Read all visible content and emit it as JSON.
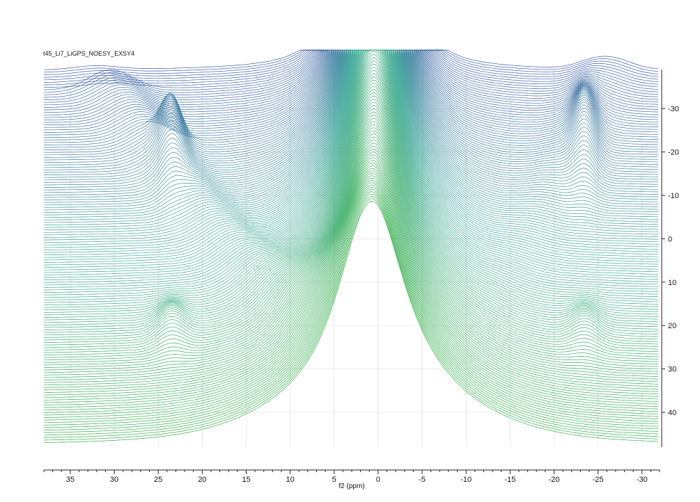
{
  "chart_data": {
    "type": "line",
    "title": "t45_Li7_LiGPS_NOESY_EXSY4",
    "xlabel": "f2 (ppm)",
    "ylabel": "",
    "x_reversed": true,
    "xlim": [
      38.0,
      -32.0
    ],
    "ylim": [
      -39.0,
      48.0
    ],
    "x_ticks": [
      "35",
      "30",
      "25",
      "20",
      "15",
      "10",
      "5",
      "0",
      "-5",
      "-10",
      "-15",
      "-20",
      "-25",
      "-30"
    ],
    "x_tick_values": [
      35,
      30,
      25,
      20,
      15,
      10,
      5,
      0,
      -5,
      -10,
      -15,
      -20,
      -25,
      -30
    ],
    "y_ticks": [
      "-30",
      "-20",
      "-10",
      "0",
      "10",
      "20",
      "30",
      "40"
    ],
    "y_tick_values": [
      -30,
      -20,
      -10,
      0,
      10,
      20,
      30,
      40
    ],
    "grid": true,
    "colormap": {
      "low": "#1a3f96",
      "mid": "#1e9a8a",
      "high": "#12a02a"
    },
    "trace_count": 150,
    "features": {
      "central_peak_ppm": 0.5,
      "diagonal_crosspeak_ppm": [
        23.5,
        -23.5
      ],
      "crosspeak_f1_ppm": [
        -22,
        23
      ]
    }
  }
}
